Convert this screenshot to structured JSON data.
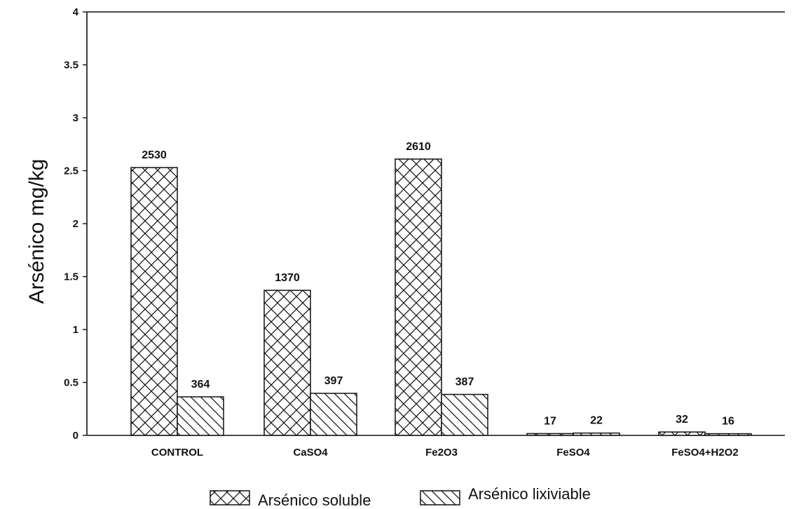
{
  "chart_data": {
    "type": "bar",
    "title": "",
    "xlabel": "",
    "ylabel": "Arsénico mg/kg",
    "ylim": [
      0,
      4
    ],
    "yticks": [
      "0",
      "0.5",
      "1",
      "1.5",
      "2",
      "2.5",
      "3",
      "3.5",
      "4"
    ],
    "grid": false,
    "legend_position": "bottom-center",
    "categories": [
      "CONTROL",
      "CaSO4",
      "Fe2O3",
      "FeSO4",
      "FeSO4+H2O2"
    ],
    "series": [
      {
        "name": "Arsénico soluble",
        "pattern": "crosshatch",
        "values": [
          2.53,
          1.37,
          2.61,
          0.017,
          0.032
        ],
        "labels": [
          "2530",
          "1370",
          "2610",
          "17",
          "32"
        ]
      },
      {
        "name": "Arsénico lixiviable",
        "pattern": "diagonal",
        "values": [
          0.364,
          0.397,
          0.387,
          0.022,
          0.016
        ],
        "labels": [
          "364",
          "397",
          "387",
          "22",
          "16"
        ]
      }
    ]
  },
  "colors": {
    "ink": "#111111",
    "background": "#ffffff"
  }
}
